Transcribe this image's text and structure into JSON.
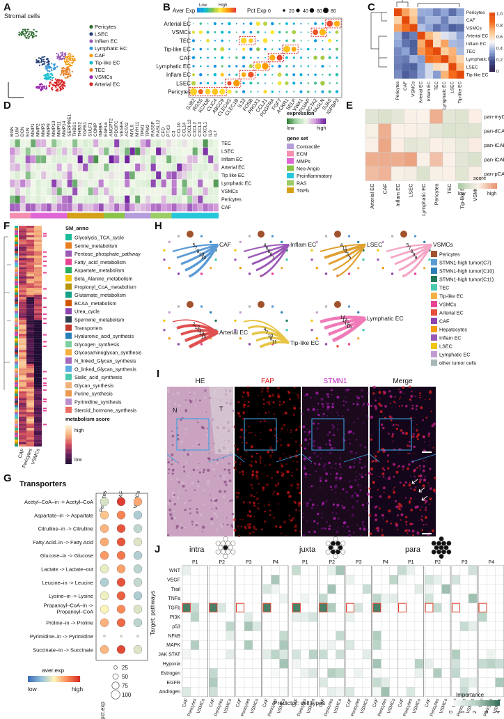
{
  "panel_letters": [
    "A",
    "B",
    "C",
    "D",
    "E",
    "F",
    "G",
    "H",
    "I",
    "J"
  ],
  "colors": {
    "Pericytes": "#c0392b",
    "LSEC": "#1f3b73",
    "Inflam EC": "#8e44ad",
    "Lymphatic EC": "#e377c2",
    "CAF": "#f39c12",
    "Tip-like EC": "#17becf",
    "TEC": "#ff7f0e",
    "VSMCs": "#9467bd",
    "Arterial EC": "#d62728",
    "Fibro": "#2e7d32"
  },
  "panelA": {
    "title": "Stromal cells",
    "legend": [
      "Pericytes",
      "LSEC",
      "Inflam EC",
      "Lymphatic EC",
      "CAF",
      "Tip-like EC",
      "TEC",
      "VSMCs",
      "Arterial EC"
    ],
    "legend_colors": [
      "#2d6a2f",
      "#1f3b73",
      "#9b59b6",
      "#3b9ad9",
      "#f39c12",
      "#17becf",
      "#e67e22",
      "#9b27b0",
      "#d62728"
    ]
  },
  "panelB": {
    "legend_aver": "Aver Exp",
    "low": "Low",
    "high": "High",
    "legend_pct": "Pct Exp",
    "pct_values": [
      "0",
      "20",
      "40",
      "60",
      "80"
    ],
    "rows": [
      "Arterial EC",
      "VSMCs",
      "TEC",
      "Tip-like EC",
      "CAF",
      "Lymphatic EC",
      "Inflam EC",
      "LSEC",
      "Pericytes"
    ],
    "genes": [
      "GJB2",
      "RGS5",
      "KCNJ8",
      "CLIC4",
      "ABCC9",
      "CLEC4G",
      "CLEC1B",
      "IL33",
      "FOSB",
      "PROX1",
      "CCL21",
      "PDGFRA",
      "FGF7",
      "ACKR1",
      "SELP",
      "VWA1",
      "PLVAP",
      "ACTA2",
      "TAGLN",
      "GJA5",
      "IGFBP3"
    ]
  },
  "panelC": {
    "rows": [
      "Pericytes",
      "CAF",
      "VSMCs",
      "Arterial EC",
      "Inflam EC",
      "TEC",
      "Lymphatic EC",
      "LSEC",
      "Tip-like EC"
    ],
    "scale": [
      "1.0",
      "0.8",
      "0.6",
      "0.4",
      "0.2",
      "0"
    ]
  },
  "panelD": {
    "genes": [
      "BGN",
      "LUM",
      "DCN",
      "ELN",
      "MMP1",
      "MMP2",
      "MMP3",
      "MMP9",
      "MMP10",
      "MMP11",
      "MMP14",
      "SERPINE1",
      "THBS1",
      "THBS2",
      "TGFB1",
      "SULF1",
      "COMP",
      "INHBA",
      "EGFL6",
      "ANGPT2",
      "PDGFC",
      "VEGFA",
      "ACTA2",
      "MYL6",
      "MYH11",
      "TPM1",
      "TPM2",
      "RASSF",
      "RASL12",
      "CFD",
      "PTX3",
      "C3",
      "CCL19",
      "CCL14",
      "CXCL12",
      "CXCL2",
      "CXCL3",
      "CXCL1",
      "IL6",
      "IL7"
    ],
    "rows": [
      "TEC",
      "LSEC",
      "Inflam EC",
      "Arterial EC",
      "Tip like EC",
      "Lymphatic EC",
      "VSMCs",
      "Pericytes",
      "CAF"
    ],
    "legend_title": "expression",
    "low": "low",
    "high": "high",
    "set_title": "gene set",
    "sets": [
      "Contractile",
      "ECM",
      "MMPs",
      "Neo-Angio",
      "Proinflammatory",
      "RAS",
      "TGFb"
    ],
    "set_colors": [
      "#b39ddb",
      "#f48fb1",
      "#e066d6",
      "#8bc34a",
      "#26c6da",
      "#9ccc65",
      "#d4a017"
    ]
  },
  "panelE": {
    "rows": [
      "pan-myCAF",
      "pan-dCAF",
      "pan-iCAF",
      "pan-iCAF-2",
      "pan-pCAF"
    ],
    "cols": [
      "Arterial EC",
      "CAF",
      "Inflam EC",
      "LSEC",
      "Lymphatic EC",
      "Pericytes",
      "TEC",
      "Tip-like EC",
      "VSMCs"
    ],
    "score": "score",
    "low": "low",
    "high": "high"
  },
  "panelF": {
    "cols": [
      "CAF",
      "Pericytes",
      "VSMCs"
    ],
    "legend_title": "SM_anno",
    "pathways": [
      "Glycolysis_TCA_cycle",
      "Serine_metabolism",
      "Pentose_phosphate_pathway",
      "Fatty_acid_metabolism",
      "Aspartate_metabolism",
      "Beta_Alanine_metabolism",
      "Propionyl_CoA_metabolism",
      "Glutamate_metabolism",
      "BCAA_metabolism",
      "Urea_cycle",
      "Spermine_metabolism",
      "Transporters",
      "Hyaluronic_acid_synthesis",
      "Glycogen_synthesis",
      "Glycosaminoglycan_synthesis",
      "N_linked_Glycan_synthesis",
      "O_linked_Glycan_synthesis",
      "Sialic_acid_synthesis",
      "Glycan_synthesis",
      "Purine_synthesis",
      "Pyrimidine_synthesis",
      "Steroid_hormone_synthesis"
    ],
    "pathway_colors": [
      "#1abc9c",
      "#e67e22",
      "#9b59b6",
      "#e84393",
      "#27ae60",
      "#f1c40f",
      "#b7950b",
      "#16a085",
      "#d35400",
      "#8e44ad",
      "#2c3e50",
      "#c0392b",
      "#2980b9",
      "#7dcea0",
      "#f5b041",
      "#a569bd",
      "#5dade2",
      "#48c9b0",
      "#f0b27a",
      "#eb984e",
      "#bb8fce",
      "#ec7063"
    ],
    "score_title": "metabolism score",
    "high": "high",
    "low": "low"
  },
  "panelG": {
    "title": "Transporters",
    "cols": [
      "Pericytes",
      "CAF",
      "VSMCs"
    ],
    "rows": [
      "Acetyl–CoA–in -> Acetyl–CoA",
      "Aspartate–in -> Aspartate",
      "Citrulline–in -> Citrulline",
      "Fatty Acid–in -> Fatty Acid",
      "Glucose–in -> Glucose",
      "Lactate -> Lactate–out",
      "Leucine–in -> Leucine",
      "Lysine–in -> Lysine",
      "Propanoyl–CoA–in -> Propanoyl–CoA",
      "Proline–in -> Proline",
      "Pyrimidine–in -> Pyrimidine",
      "Succinate–in -> Succinate"
    ],
    "legend_col": "aver.exp",
    "low": "low",
    "high": "high",
    "pct_title": "pct.exp",
    "pct_values": [
      "25",
      "50",
      "75",
      "100"
    ]
  },
  "panelH": {
    "networks": [
      {
        "label": "CAF",
        "weights": [
          "5",
          "7",
          "9",
          "10",
          "10"
        ],
        "color": "#5b9bd5"
      },
      {
        "label": "Inflam EC",
        "weights": [
          "4",
          "6",
          "8",
          "8",
          "7"
        ],
        "color": "#9b59b6"
      },
      {
        "label": "LSEC",
        "weights": [
          "4",
          "11",
          "8",
          "5",
          "5"
        ],
        "color": "#e0a030"
      },
      {
        "label": "VSMCs",
        "weights": [
          "5",
          "7",
          "8",
          "9",
          "9"
        ],
        "color": "#f4a6c6"
      },
      {
        "label": "Arterial EC",
        "weights": [
          "2",
          "12",
          "11",
          "13",
          "15"
        ],
        "color": "#e05050"
      },
      {
        "label": "Tip-like EC",
        "weights": [
          "4",
          "7",
          "10",
          "9",
          "11"
        ],
        "color": "#e8c547"
      },
      {
        "label": "Lymphatic EC",
        "weights": [
          "14",
          "14",
          "14",
          "16"
        ],
        "color": "#f07ab8"
      }
    ],
    "legend": [
      "Pericytes",
      "STMN1-high tumor(C7)",
      "STMN1-high tumor(C10)",
      "STMN1-high tumor(C11)",
      "TEC",
      "Tip-like EC",
      "VSMCs",
      "Arterial EC",
      "CAF",
      "Hepatocytes",
      "Inflam EC",
      "LSEC",
      "Lymphatic EC",
      "other tumor cells"
    ],
    "legend_colors": [
      "#a0522d",
      "#5b9bd5",
      "#2980b9",
      "#1f7a5a",
      "#48c9b0",
      "#f5b041",
      "#e84393",
      "#e74c3c",
      "#8e44ad",
      "#f39c12",
      "#9b59b6",
      "#f1c40f",
      "#c39bd3",
      "#aab7b8"
    ]
  },
  "panelI": {
    "cols": [
      "HE",
      "FAP",
      "STMN1",
      "Merge"
    ],
    "col_colors": [
      "#111111",
      "#e02020",
      "#c020c0",
      "#111111"
    ],
    "marks": [
      "N",
      "T"
    ]
  },
  "panelJ": {
    "groups": [
      "intra",
      "juxta",
      "para"
    ],
    "patients": [
      "P1",
      "P2",
      "P3",
      "P4"
    ],
    "pathways": [
      "WNT",
      "VEGF",
      "Trail",
      "TNFa",
      "TGFb",
      "PI3K",
      "p53",
      "NFkB",
      "MAPK",
      "JAK STAT",
      "Hypoxia",
      "Estrogen",
      "EGFR",
      "Androgen"
    ],
    "predictors": [
      "CAF",
      "Pericytes",
      "VSMCs"
    ],
    "ylabel": "Target: pathways",
    "xlabel": "Predictor: cell types",
    "imp_title": "Importance",
    "imp_ticks": [
      "0",
      "1",
      "2",
      "3",
      "4"
    ]
  }
}
